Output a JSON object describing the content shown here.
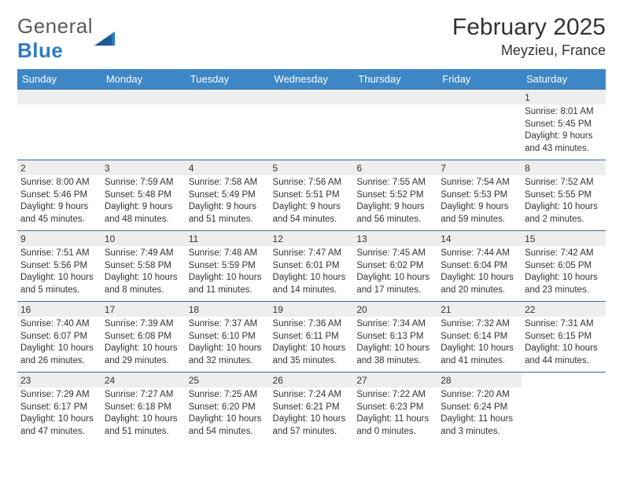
{
  "brand_general": "General",
  "brand_blue": "Blue",
  "logo_triangle_color": "#2d7bc4",
  "title": "February 2025",
  "location": "Meyzieu, France",
  "header_bg": "#3d87c7",
  "rule_color": "#3d6a9a",
  "daynum_bg": "#eeeeee",
  "columns": [
    "Sunday",
    "Monday",
    "Tuesday",
    "Wednesday",
    "Thursday",
    "Friday",
    "Saturday"
  ],
  "weeks": [
    [
      null,
      null,
      null,
      null,
      null,
      null,
      {
        "n": "1",
        "sr": "Sunrise: 8:01 AM",
        "ss": "Sunset: 5:45 PM",
        "dl": "Daylight: 9 hours and 43 minutes."
      }
    ],
    [
      {
        "n": "2",
        "sr": "Sunrise: 8:00 AM",
        "ss": "Sunset: 5:46 PM",
        "dl": "Daylight: 9 hours and 45 minutes."
      },
      {
        "n": "3",
        "sr": "Sunrise: 7:59 AM",
        "ss": "Sunset: 5:48 PM",
        "dl": "Daylight: 9 hours and 48 minutes."
      },
      {
        "n": "4",
        "sr": "Sunrise: 7:58 AM",
        "ss": "Sunset: 5:49 PM",
        "dl": "Daylight: 9 hours and 51 minutes."
      },
      {
        "n": "5",
        "sr": "Sunrise: 7:56 AM",
        "ss": "Sunset: 5:51 PM",
        "dl": "Daylight: 9 hours and 54 minutes."
      },
      {
        "n": "6",
        "sr": "Sunrise: 7:55 AM",
        "ss": "Sunset: 5:52 PM",
        "dl": "Daylight: 9 hours and 56 minutes."
      },
      {
        "n": "7",
        "sr": "Sunrise: 7:54 AM",
        "ss": "Sunset: 5:53 PM",
        "dl": "Daylight: 9 hours and 59 minutes."
      },
      {
        "n": "8",
        "sr": "Sunrise: 7:52 AM",
        "ss": "Sunset: 5:55 PM",
        "dl": "Daylight: 10 hours and 2 minutes."
      }
    ],
    [
      {
        "n": "9",
        "sr": "Sunrise: 7:51 AM",
        "ss": "Sunset: 5:56 PM",
        "dl": "Daylight: 10 hours and 5 minutes."
      },
      {
        "n": "10",
        "sr": "Sunrise: 7:49 AM",
        "ss": "Sunset: 5:58 PM",
        "dl": "Daylight: 10 hours and 8 minutes."
      },
      {
        "n": "11",
        "sr": "Sunrise: 7:48 AM",
        "ss": "Sunset: 5:59 PM",
        "dl": "Daylight: 10 hours and 11 minutes."
      },
      {
        "n": "12",
        "sr": "Sunrise: 7:47 AM",
        "ss": "Sunset: 6:01 PM",
        "dl": "Daylight: 10 hours and 14 minutes."
      },
      {
        "n": "13",
        "sr": "Sunrise: 7:45 AM",
        "ss": "Sunset: 6:02 PM",
        "dl": "Daylight: 10 hours and 17 minutes."
      },
      {
        "n": "14",
        "sr": "Sunrise: 7:44 AM",
        "ss": "Sunset: 6:04 PM",
        "dl": "Daylight: 10 hours and 20 minutes."
      },
      {
        "n": "15",
        "sr": "Sunrise: 7:42 AM",
        "ss": "Sunset: 6:05 PM",
        "dl": "Daylight: 10 hours and 23 minutes."
      }
    ],
    [
      {
        "n": "16",
        "sr": "Sunrise: 7:40 AM",
        "ss": "Sunset: 6:07 PM",
        "dl": "Daylight: 10 hours and 26 minutes."
      },
      {
        "n": "17",
        "sr": "Sunrise: 7:39 AM",
        "ss": "Sunset: 6:08 PM",
        "dl": "Daylight: 10 hours and 29 minutes."
      },
      {
        "n": "18",
        "sr": "Sunrise: 7:37 AM",
        "ss": "Sunset: 6:10 PM",
        "dl": "Daylight: 10 hours and 32 minutes."
      },
      {
        "n": "19",
        "sr": "Sunrise: 7:36 AM",
        "ss": "Sunset: 6:11 PM",
        "dl": "Daylight: 10 hours and 35 minutes."
      },
      {
        "n": "20",
        "sr": "Sunrise: 7:34 AM",
        "ss": "Sunset: 6:13 PM",
        "dl": "Daylight: 10 hours and 38 minutes."
      },
      {
        "n": "21",
        "sr": "Sunrise: 7:32 AM",
        "ss": "Sunset: 6:14 PM",
        "dl": "Daylight: 10 hours and 41 minutes."
      },
      {
        "n": "22",
        "sr": "Sunrise: 7:31 AM",
        "ss": "Sunset: 6:15 PM",
        "dl": "Daylight: 10 hours and 44 minutes."
      }
    ],
    [
      {
        "n": "23",
        "sr": "Sunrise: 7:29 AM",
        "ss": "Sunset: 6:17 PM",
        "dl": "Daylight: 10 hours and 47 minutes."
      },
      {
        "n": "24",
        "sr": "Sunrise: 7:27 AM",
        "ss": "Sunset: 6:18 PM",
        "dl": "Daylight: 10 hours and 51 minutes."
      },
      {
        "n": "25",
        "sr": "Sunrise: 7:25 AM",
        "ss": "Sunset: 6:20 PM",
        "dl": "Daylight: 10 hours and 54 minutes."
      },
      {
        "n": "26",
        "sr": "Sunrise: 7:24 AM",
        "ss": "Sunset: 6:21 PM",
        "dl": "Daylight: 10 hours and 57 minutes."
      },
      {
        "n": "27",
        "sr": "Sunrise: 7:22 AM",
        "ss": "Sunset: 6:23 PM",
        "dl": "Daylight: 11 hours and 0 minutes."
      },
      {
        "n": "28",
        "sr": "Sunrise: 7:20 AM",
        "ss": "Sunset: 6:24 PM",
        "dl": "Daylight: 11 hours and 3 minutes."
      },
      null
    ]
  ]
}
